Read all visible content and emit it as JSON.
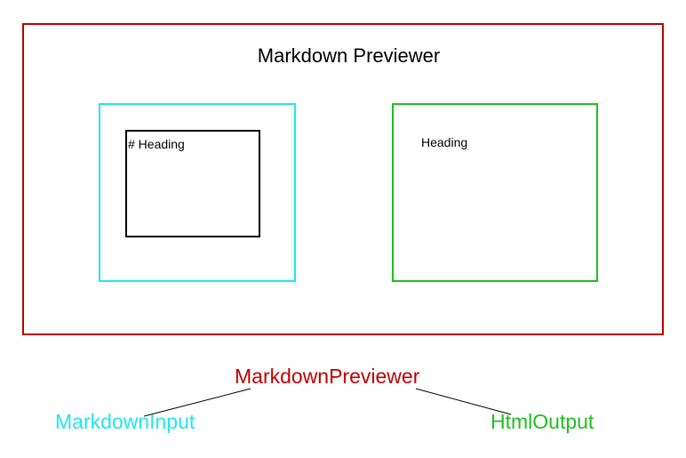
{
  "app": {
    "title": "Markdown Previewer",
    "input_text": "# Heading",
    "output_text": "Heading"
  },
  "tree": {
    "root": {
      "label": "MarkdownPreviewer",
      "color": "#c00000"
    },
    "children": [
      {
        "label": "MarkdownInput",
        "color": "#22e6ee"
      },
      {
        "label": "HtmlOutput",
        "color": "#1fbf1f"
      }
    ]
  },
  "colors": {
    "app_border": "#c00000",
    "input_border": "#22e6ee",
    "textarea_border": "#000000",
    "output_border": "#1fbf1f"
  }
}
